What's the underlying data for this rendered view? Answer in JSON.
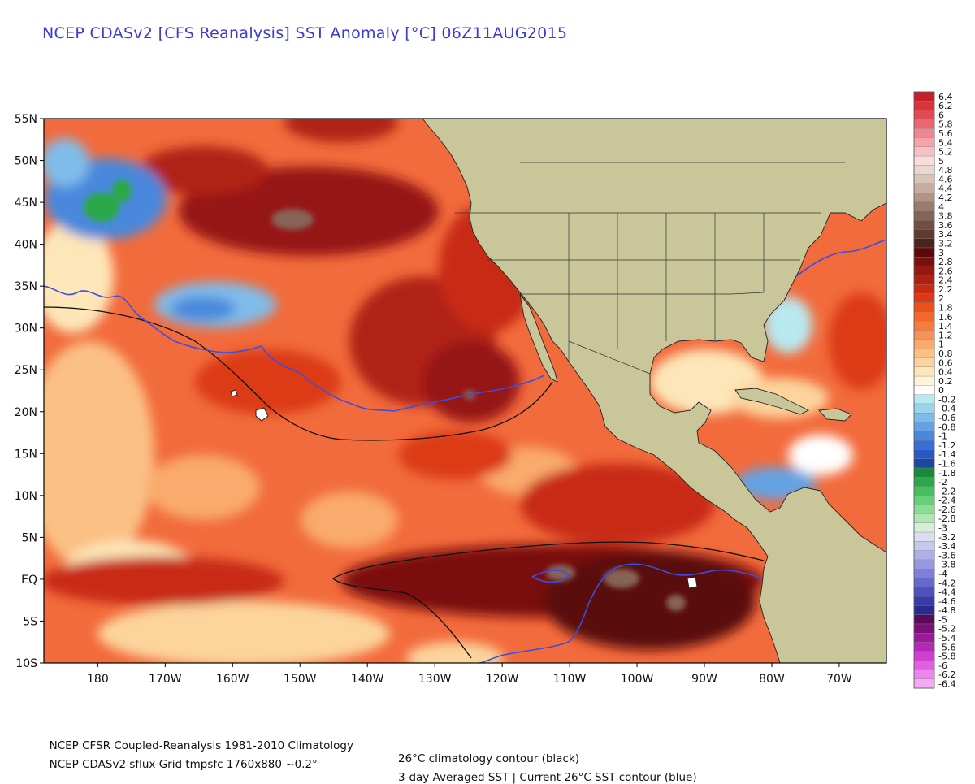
{
  "title": "NCEP CDASv2 [CFS Reanalysis] SST Anomaly [°C] 06Z11AUG2015",
  "footer": {
    "line1_left": "NCEP CFSR Coupled-Reanalysis 1981-2010 Climatology",
    "line1_right": "26°C climatology contour (black)",
    "line2_left": "NCEP CDASv2 sflux Grid tmpsfc 1760x880 ~0.2°",
    "line2_right": "3-day Averaged SST | Current 26°C SST contour (blue)"
  },
  "map": {
    "lat_labels": [
      "55N",
      "50N",
      "45N",
      "40N",
      "35N",
      "30N",
      "25N",
      "20N",
      "15N",
      "10N",
      "5N",
      "EQ",
      "5S",
      "10S"
    ],
    "lon_labels": [
      "180",
      "170W",
      "160W",
      "150W",
      "140W",
      "130W",
      "120W",
      "110W",
      "100W",
      "90W",
      "80W",
      "70W"
    ],
    "lat_range": [
      -10,
      55
    ],
    "lon_range": [
      -188,
      -63
    ],
    "colors": {
      "land": "#c9c79a",
      "ocean_base": "#f26b3c",
      "climatology_contour": "#111111",
      "current_contour": "#3a4fe0"
    }
  },
  "colorbar": {
    "labels": [
      "6.4",
      "6.2",
      "6",
      "5.8",
      "5.6",
      "5.4",
      "5.2",
      "5",
      "4.8",
      "4.6",
      "4.4",
      "4.2",
      "4",
      "3.8",
      "3.6",
      "3.4",
      "3.2",
      "3",
      "2.8",
      "2.6",
      "2.4",
      "2.2",
      "2",
      "1.8",
      "1.6",
      "1.4",
      "1.2",
      "1",
      "0.8",
      "0.6",
      "0.4",
      "0.2",
      "0",
      "-0.2",
      "-0.4",
      "-0.6",
      "-0.8",
      "-1",
      "-1.2",
      "-1.4",
      "-1.6",
      "-1.8",
      "-2",
      "-2.2",
      "-2.4",
      "-2.6",
      "-2.8",
      "-3",
      "-3.2",
      "-3.4",
      "-3.6",
      "-3.8",
      "-4",
      "-4.2",
      "-4.4",
      "-4.6",
      "-4.8",
      "-5",
      "-5.2",
      "-5.4",
      "-5.6",
      "-5.8",
      "-6",
      "-6.2",
      "-6.4"
    ],
    "colors": [
      "#c8202a",
      "#d8343c",
      "#e24a52",
      "#ea6670",
      "#f0868e",
      "#f4a4aa",
      "#f7c0c4",
      "#f9dcdc",
      "#e8d8d0",
      "#d8c4b8",
      "#c6ada0",
      "#b29486",
      "#9c7b6d",
      "#876457",
      "#724e43",
      "#5e3a31",
      "#4a2520",
      "#5a0a0a",
      "#7a0f0f",
      "#961812",
      "#b02012",
      "#c82a12",
      "#dc3a14",
      "#ec5018",
      "#f4662a",
      "#f67c3e",
      "#f89254",
      "#f9aa6c",
      "#fbc084",
      "#fcd49c",
      "#fde6b8",
      "#fff4d8",
      "#ffffff",
      "#b8e8f0",
      "#9cd4ee",
      "#80bcea",
      "#64a2e4",
      "#4a88dc",
      "#366ed4",
      "#2858c4",
      "#1c48a4",
      "#1a8a3a",
      "#2aa84a",
      "#44c05c",
      "#66d078",
      "#8adc96",
      "#aee6b4",
      "#d6f0d6",
      "#ddddf2",
      "#c8c8ee",
      "#b0b0e8",
      "#9898e0",
      "#8080d8",
      "#6868cc",
      "#5050c0",
      "#3a3aaa",
      "#2a2a8e",
      "#5a0a5a",
      "#7a107a",
      "#9a1a9a",
      "#b828b8",
      "#d040d0",
      "#e060e0",
      "#ec86ec",
      "#f4aaf4"
    ]
  }
}
